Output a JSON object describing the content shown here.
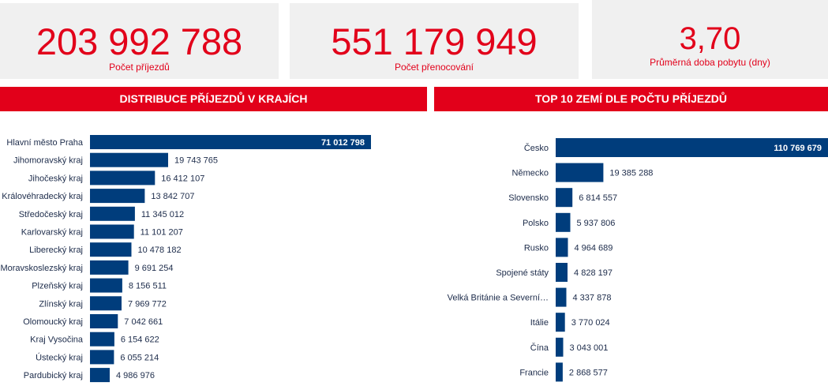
{
  "kpis": [
    {
      "value": "203 992 788",
      "label": "Počet příjezdů"
    },
    {
      "value": "551 179 949",
      "label": "Počet přenocování"
    },
    {
      "value": "3,70",
      "label": "Průměrná doba pobytu (dny)"
    }
  ],
  "colors": {
    "accent": "#e2001a",
    "bar": "#003d7c",
    "panel": "#f0f0f0"
  },
  "chart_data": [
    {
      "type": "bar",
      "orientation": "horizontal",
      "title": "DISTRIBUCE PŘÍJEZDŮ V KRAJÍCH",
      "categories": [
        "Hlavní město Praha",
        "Jihomoravský kraj",
        "Jihočeský kraj",
        "Královéhradecký kraj",
        "Středočeský kraj",
        "Karlovarský kraj",
        "Liberecký kraj",
        "Moravskoslezský kraj",
        "Plzeňský kraj",
        "Zlínský kraj",
        "Olomoucký kraj",
        "Kraj Vysočina",
        "Ústecký kraj",
        "Pardubický kraj"
      ],
      "values": [
        71012798,
        19743765,
        16412107,
        13842707,
        11345012,
        11101207,
        10478182,
        9691254,
        8156511,
        7969772,
        7042661,
        6154622,
        6055214,
        4986976
      ],
      "value_labels": [
        "71 012 798",
        "19 743 765",
        "16 412 107",
        "13 842 707",
        "11 345 012",
        "11 101 207",
        "10 478 182",
        "9 691 254",
        "8 156 511",
        "7 969 772",
        "7 042 661",
        "6 154 622",
        "6 055 214",
        "4 986 976"
      ],
      "grid": false
    },
    {
      "type": "bar",
      "orientation": "horizontal",
      "title": "TOP 10 ZEMÍ DLE POČTU PŘÍJEZDŮ",
      "categories": [
        "Česko",
        "Německo",
        "Slovensko",
        "Polsko",
        "Rusko",
        "Spojené státy",
        "Velká Británie a Severní…",
        "Itálie",
        "Čína",
        "Francie"
      ],
      "values": [
        110769679,
        19385288,
        6814557,
        5937806,
        4964689,
        4828197,
        4337878,
        3770024,
        3043001,
        2868577
      ],
      "value_labels": [
        "110 769 679",
        "19 385 288",
        "6 814 557",
        "5 937 806",
        "4 964 689",
        "4 828 197",
        "4 337 878",
        "3 770 024",
        "3 043 001",
        "2 868 577"
      ],
      "grid": false
    }
  ]
}
